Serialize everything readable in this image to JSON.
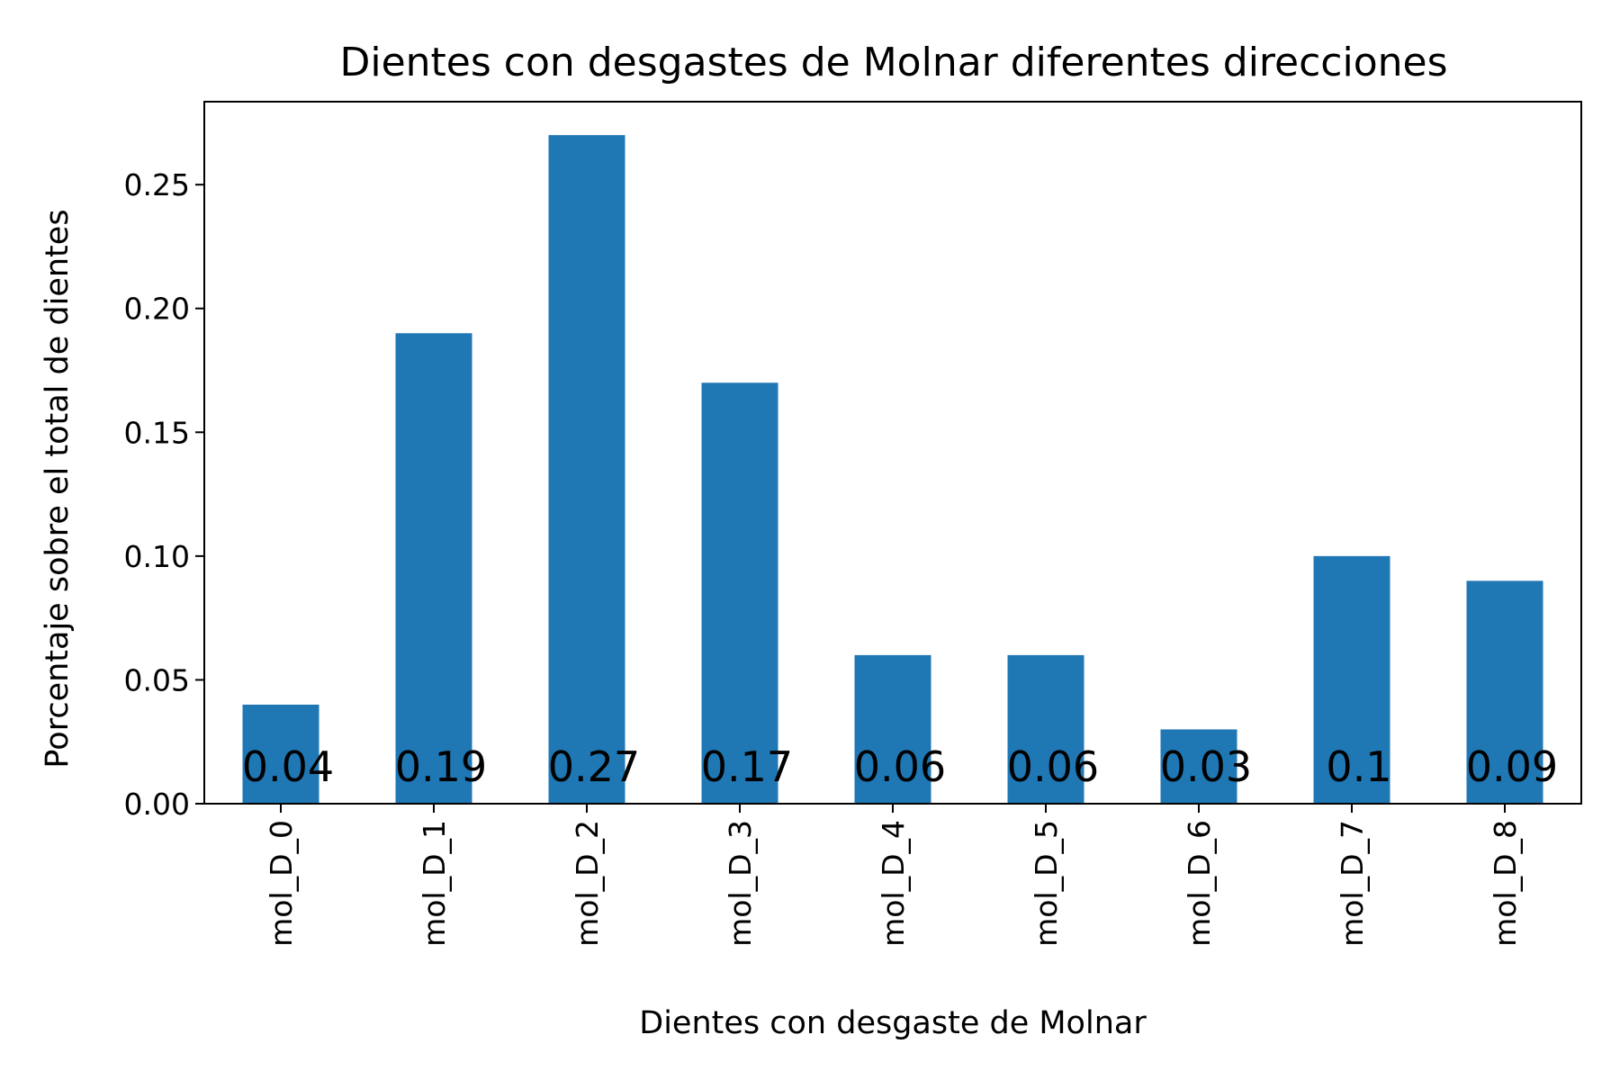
{
  "chart_data": {
    "type": "bar",
    "title": "Dientes con desgastes de Molnar diferentes direcciones",
    "xlabel": "Dientes con desgaste de Molnar",
    "ylabel": "Porcentaje sobre el total de dientes",
    "categories": [
      "mol_D_0",
      "mol_D_1",
      "mol_D_2",
      "mol_D_3",
      "mol_D_4",
      "mol_D_5",
      "mol_D_6",
      "mol_D_7",
      "mol_D_8"
    ],
    "values": [
      0.04,
      0.19,
      0.27,
      0.17,
      0.06,
      0.06,
      0.03,
      0.1,
      0.09
    ],
    "value_labels": [
      "0.04",
      "0.19",
      "0.27",
      "0.17",
      "0.06",
      "0.06",
      "0.03",
      "0.1",
      "0.09"
    ],
    "ylim": [
      0,
      0.2835
    ],
    "yticks": [
      0.0,
      0.05,
      0.1,
      0.15,
      0.2,
      0.25
    ],
    "ytick_labels": [
      "0.00",
      "0.05",
      "0.10",
      "0.15",
      "0.20",
      "0.25"
    ],
    "bar_color": "#1f77b4",
    "grid": false,
    "legend": "none"
  }
}
